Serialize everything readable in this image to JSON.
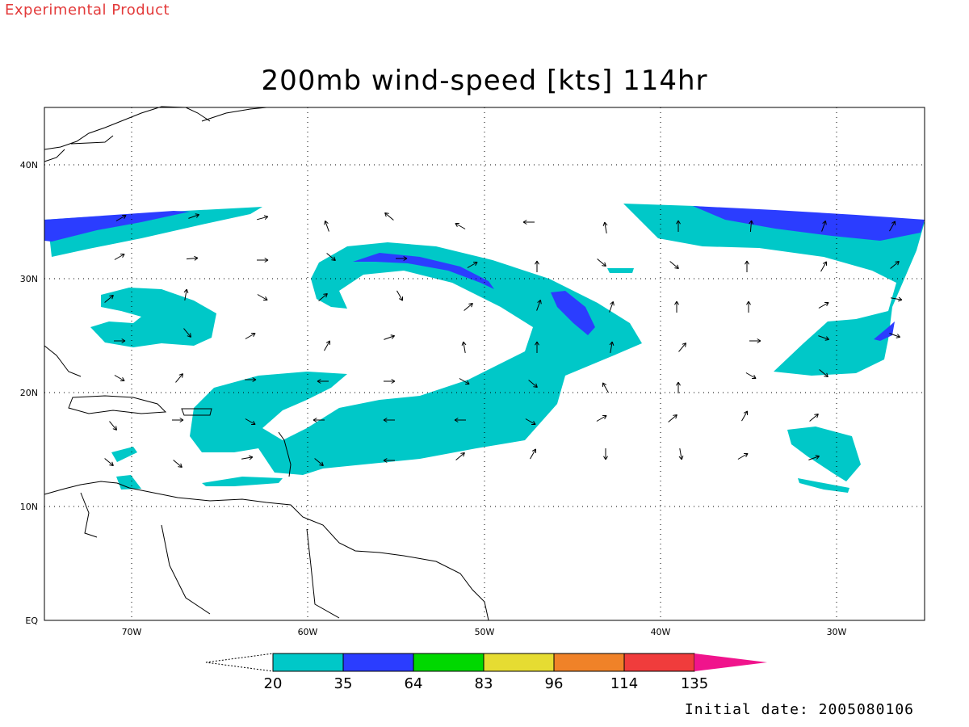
{
  "header": {
    "product_label": "Experimental Product",
    "title": "200mb wind-speed [kts] 114hr",
    "initial_date": "Initial date: 2005080106"
  },
  "map": {
    "lon_range": [
      -75,
      -25
    ],
    "lat_range": [
      0,
      45
    ],
    "lon_ticks": [
      {
        "value": -70,
        "label": "70W"
      },
      {
        "value": -60,
        "label": "60W"
      },
      {
        "value": -50,
        "label": "50W"
      },
      {
        "value": -40,
        "label": "40W"
      },
      {
        "value": -30,
        "label": "30W"
      }
    ],
    "lat_ticks": [
      {
        "value": 0,
        "label": "EQ"
      },
      {
        "value": 10,
        "label": "10N"
      },
      {
        "value": 20,
        "label": "20N"
      },
      {
        "value": 30,
        "label": "30N"
      },
      {
        "value": 40,
        "label": "40N"
      }
    ],
    "grid": true
  },
  "colorbar": {
    "levels": [
      "20",
      "35",
      "64",
      "83",
      "96",
      "114",
      "135"
    ],
    "colors": [
      "#00c8c8",
      "#2b3dff",
      "#00d800",
      "#e6dc32",
      "#f08228",
      "#f03c3c",
      "#f0148c"
    ]
  }
}
